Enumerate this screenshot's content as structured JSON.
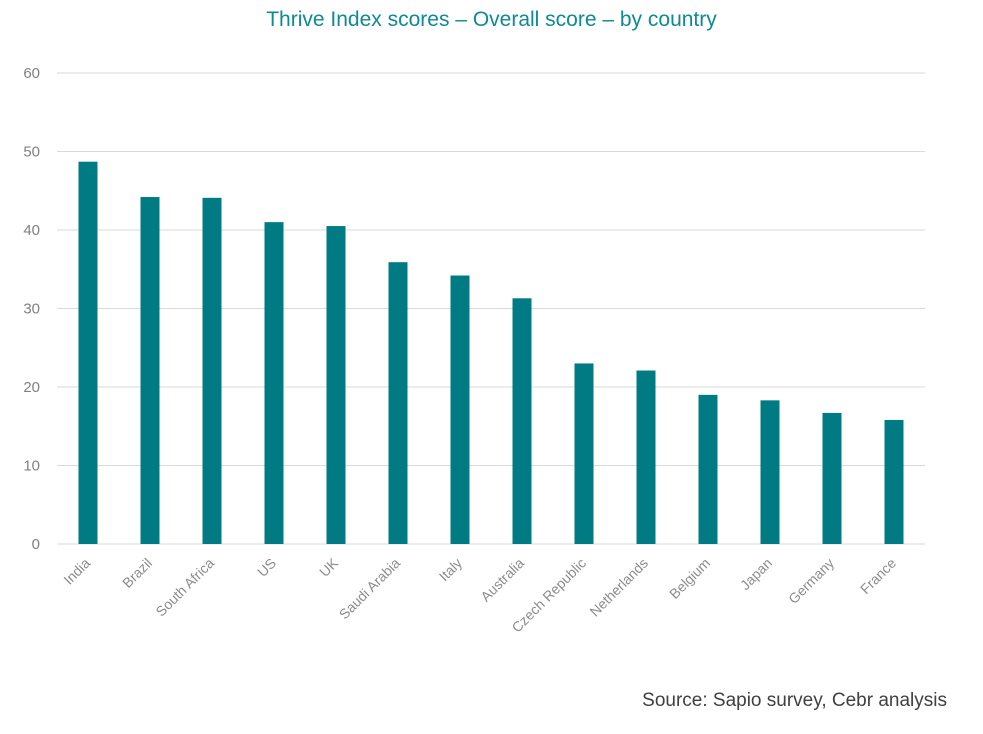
{
  "chart_data": {
    "type": "bar",
    "title": "Thrive Index scores – Overall score – by country",
    "categories": [
      "India",
      "Brazil",
      "South Africa",
      "US",
      "UK",
      "Saudi Arabia",
      "Italy",
      "Australia",
      "Czech Republic",
      "Netherlands",
      "Belgium",
      "Japan",
      "Germany",
      "France"
    ],
    "values": [
      48.7,
      44.2,
      44.1,
      41.0,
      40.5,
      35.9,
      34.2,
      31.3,
      23.0,
      22.1,
      19.0,
      18.3,
      16.7,
      15.8
    ],
    "ylim": [
      0,
      60
    ],
    "yticks": [
      0,
      10,
      20,
      30,
      40,
      50,
      60
    ],
    "grid": true,
    "bar_color": "#007b84",
    "xlabel": "",
    "ylabel": ""
  },
  "source": "Source: Sapio survey, Cebr analysis"
}
